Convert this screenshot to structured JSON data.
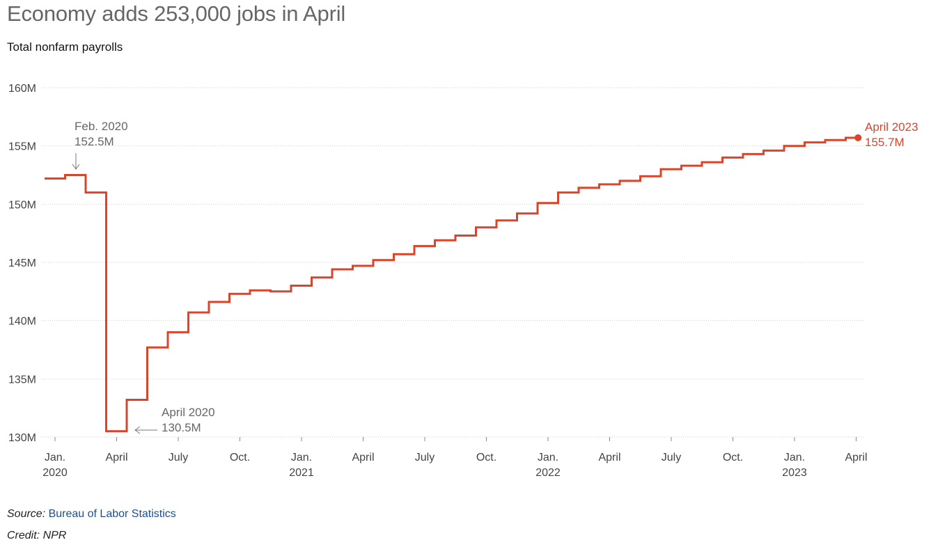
{
  "title": "Economy adds 253,000 jobs in April",
  "subtitle": "Total nonfarm payrolls",
  "source_label": "Source:",
  "source_link": "Bureau of Labor Statistics",
  "credit": "Credit: NPR",
  "colors": {
    "line": "#d9452b",
    "grid": "#cfcfcf",
    "axis_text": "#444444",
    "annotation": "#666666"
  },
  "chart_data": {
    "type": "line",
    "step": true,
    "title": "Economy adds 253,000 jobs in April",
    "subtitle": "Total nonfarm payrolls",
    "ylim": [
      130,
      160
    ],
    "yticks": [
      130,
      135,
      140,
      145,
      150,
      155,
      160
    ],
    "ytick_labels": [
      "130M",
      "135M",
      "140M",
      "145M",
      "150M",
      "155M",
      "160M"
    ],
    "grid": true,
    "xticks": [
      {
        "date": "2020-01",
        "line1": "Jan.",
        "line2": "2020"
      },
      {
        "date": "2020-04",
        "line1": "April",
        "line2": ""
      },
      {
        "date": "2020-07",
        "line1": "July",
        "line2": ""
      },
      {
        "date": "2020-10",
        "line1": "Oct.",
        "line2": ""
      },
      {
        "date": "2021-01",
        "line1": "Jan.",
        "line2": "2021"
      },
      {
        "date": "2021-04",
        "line1": "April",
        "line2": ""
      },
      {
        "date": "2021-07",
        "line1": "July",
        "line2": ""
      },
      {
        "date": "2021-10",
        "line1": "Oct.",
        "line2": ""
      },
      {
        "date": "2022-01",
        "line1": "Jan.",
        "line2": "2022"
      },
      {
        "date": "2022-04",
        "line1": "April",
        "line2": ""
      },
      {
        "date": "2022-07",
        "line1": "July",
        "line2": ""
      },
      {
        "date": "2022-10",
        "line1": "Oct.",
        "line2": ""
      },
      {
        "date": "2023-01",
        "line1": "Jan.",
        "line2": "2023"
      },
      {
        "date": "2023-04",
        "line1": "April",
        "line2": ""
      }
    ],
    "series": [
      {
        "dates": [
          "2020-01",
          "2020-02",
          "2020-03",
          "2020-04",
          "2020-05",
          "2020-06",
          "2020-07",
          "2020-08",
          "2020-09",
          "2020-10",
          "2020-11",
          "2020-12",
          "2021-01",
          "2021-02",
          "2021-03",
          "2021-04",
          "2021-05",
          "2021-06",
          "2021-07",
          "2021-08",
          "2021-09",
          "2021-10",
          "2021-11",
          "2021-12",
          "2022-01",
          "2022-02",
          "2022-03",
          "2022-04",
          "2022-05",
          "2022-06",
          "2022-07",
          "2022-08",
          "2022-09",
          "2022-10",
          "2022-11",
          "2022-12",
          "2023-01",
          "2023-02",
          "2023-03",
          "2023-04"
        ],
        "values": [
          152.2,
          152.5,
          151.0,
          130.5,
          133.2,
          137.7,
          139.0,
          140.7,
          141.6,
          142.3,
          142.6,
          142.5,
          143.0,
          143.7,
          144.4,
          144.7,
          145.2,
          145.7,
          146.4,
          146.9,
          147.3,
          148.0,
          148.6,
          149.2,
          150.1,
          151.0,
          151.4,
          151.7,
          152.0,
          152.4,
          153.0,
          153.3,
          153.6,
          154.0,
          154.3,
          154.6,
          155.0,
          155.3,
          155.5,
          155.7
        ]
      }
    ],
    "annotations": [
      {
        "date": "2020-02",
        "value": 152.5,
        "line1": "Feb. 2020",
        "line2": "152.5M"
      },
      {
        "date": "2020-04",
        "value": 130.5,
        "line1": "April 2020",
        "line2": "130.5M"
      },
      {
        "date": "2023-04",
        "value": 155.7,
        "line1": "April 2023",
        "line2": "155.7M"
      }
    ]
  }
}
